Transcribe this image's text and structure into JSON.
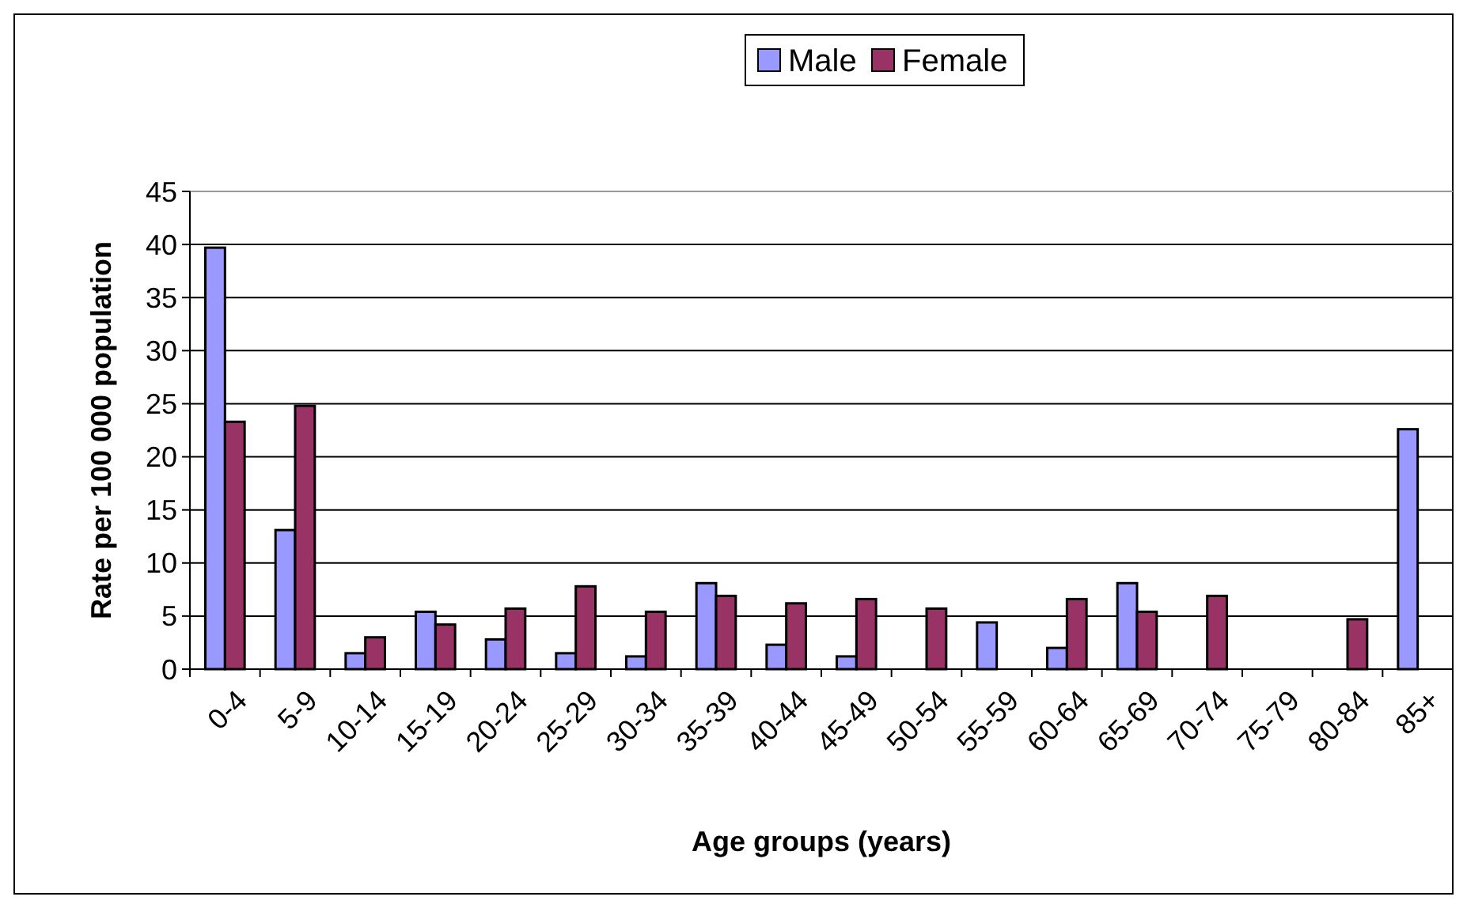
{
  "chart_data": {
    "type": "bar",
    "xlabel": "Age groups (years)",
    "ylabel": "Rate per 100 000 population",
    "categories": [
      "0-4",
      "5-9",
      "10-14",
      "15-19",
      "20-24",
      "25-29",
      "30-34",
      "35-39",
      "40-44",
      "45-49",
      "50-54",
      "55-59",
      "60-64",
      "65-69",
      "70-74",
      "75-79",
      "80-84",
      "85+"
    ],
    "series": [
      {
        "name": "Male",
        "color": "#9999ff",
        "values": [
          39.7,
          13.1,
          1.5,
          5.4,
          2.8,
          1.5,
          1.2,
          8.1,
          2.3,
          1.2,
          0,
          4.4,
          2.0,
          8.1,
          0,
          0,
          0,
          22.6
        ]
      },
      {
        "name": "Female",
        "color": "#993366",
        "values": [
          23.3,
          24.8,
          3.0,
          4.2,
          5.7,
          7.8,
          5.4,
          6.9,
          6.2,
          6.6,
          5.7,
          0,
          6.6,
          5.4,
          6.9,
          0,
          4.7,
          0
        ]
      }
    ],
    "ylim": [
      0,
      45
    ],
    "yticks": [
      0,
      5,
      10,
      15,
      20,
      25,
      30,
      35,
      40,
      45
    ],
    "grid": "y",
    "legend": "top"
  }
}
